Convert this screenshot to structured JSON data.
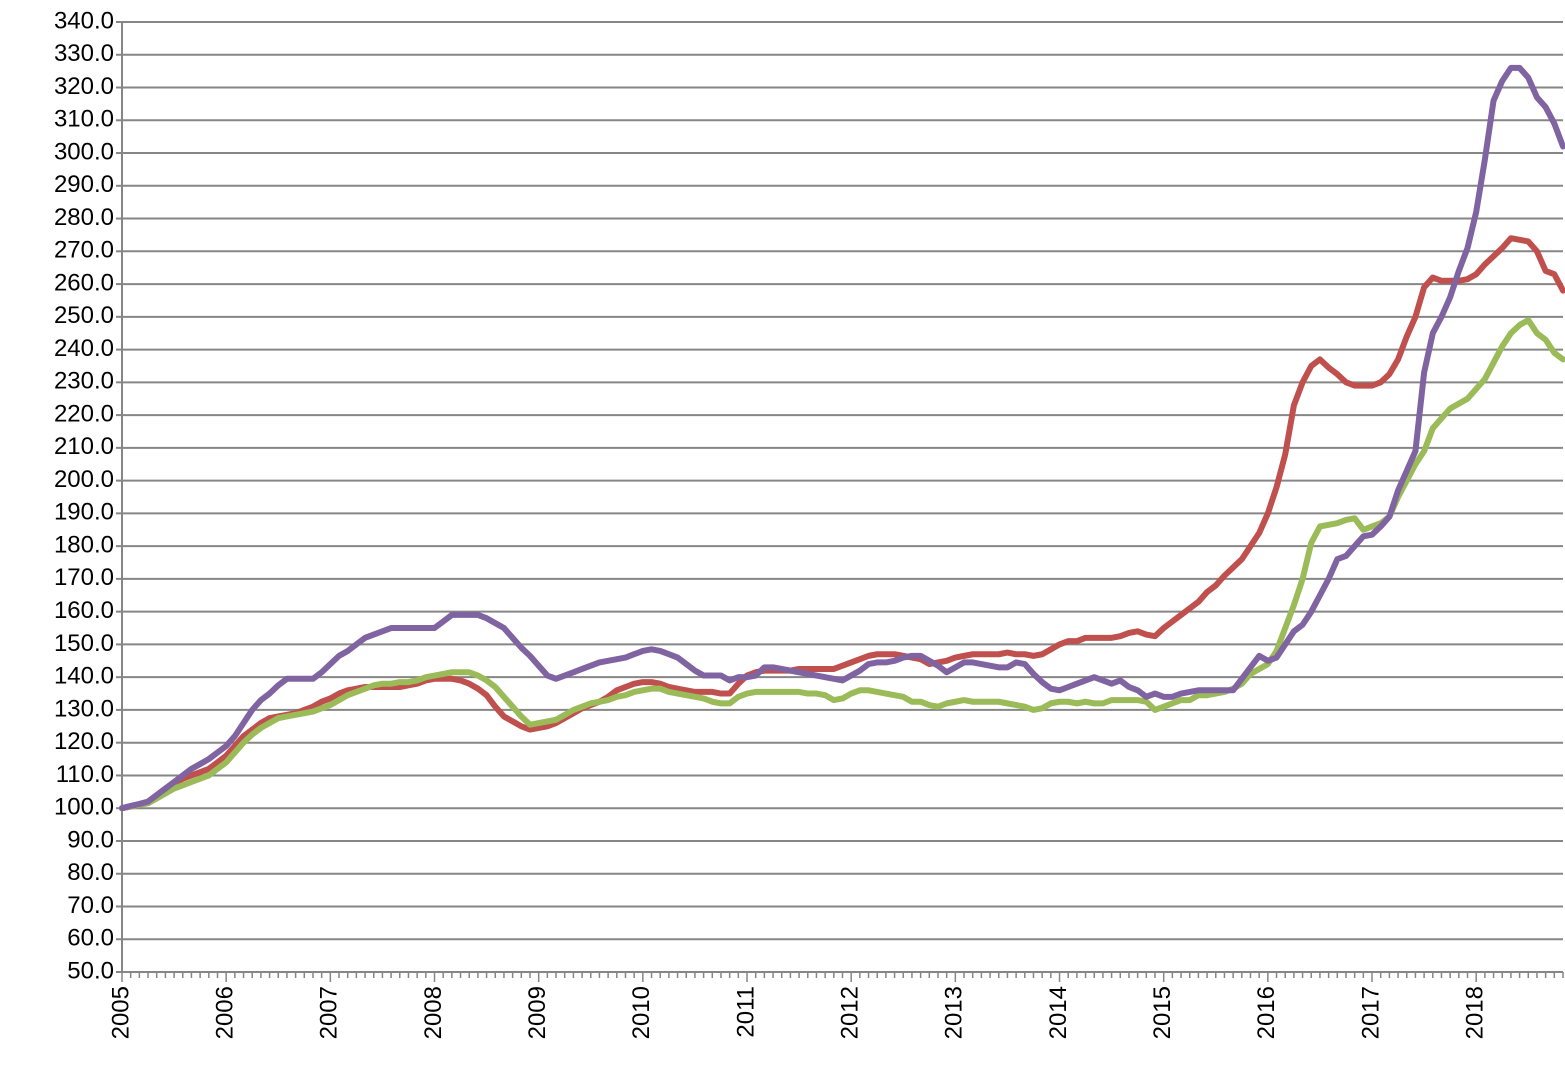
{
  "chart_data": {
    "type": "line",
    "categories": [
      "2005",
      null,
      null,
      null,
      null,
      null,
      null,
      null,
      null,
      null,
      null,
      null,
      "2006",
      null,
      null,
      null,
      null,
      null,
      null,
      null,
      null,
      null,
      null,
      null,
      "2007",
      null,
      null,
      null,
      null,
      null,
      null,
      null,
      null,
      null,
      null,
      null,
      "2008",
      null,
      null,
      null,
      null,
      null,
      null,
      null,
      null,
      null,
      null,
      null,
      "2009",
      null,
      null,
      null,
      null,
      null,
      null,
      null,
      null,
      null,
      null,
      null,
      "2010",
      null,
      null,
      null,
      null,
      null,
      null,
      null,
      null,
      null,
      null,
      null,
      "2011",
      null,
      null,
      null,
      null,
      null,
      null,
      null,
      null,
      null,
      null,
      null,
      "2012",
      null,
      null,
      null,
      null,
      null,
      null,
      null,
      null,
      null,
      null,
      null,
      "2013",
      null,
      null,
      null,
      null,
      null,
      null,
      null,
      null,
      null,
      null,
      null,
      "2014",
      null,
      null,
      null,
      null,
      null,
      null,
      null,
      null,
      null,
      null,
      null,
      "2015",
      null,
      null,
      null,
      null,
      null,
      null,
      null,
      null,
      null,
      null,
      null,
      "2016",
      null,
      null,
      null,
      null,
      null,
      null,
      null,
      null,
      null,
      null,
      null,
      "2017",
      null,
      null,
      null,
      null,
      null,
      null,
      null,
      null,
      null,
      null,
      null,
      "2018",
      null,
      null,
      null,
      null,
      null,
      null,
      null,
      null,
      null,
      null
    ],
    "series": [
      {
        "color": "#c0504d",
        "values": [
          100,
          100.5,
          101,
          102,
          104,
          106,
          107.5,
          109,
          110,
          111,
          112,
          114,
          116,
          119,
          122,
          124,
          126,
          127.5,
          128,
          128.5,
          129,
          130,
          131,
          132.5,
          133.5,
          135,
          136,
          136.5,
          137,
          137,
          137,
          137,
          137,
          137.5,
          138,
          139,
          139.5,
          139.5,
          139.5,
          139,
          138,
          136.5,
          134.5,
          131,
          128,
          126.5,
          125,
          124,
          124.5,
          125,
          126,
          127.5,
          129,
          130.5,
          131.5,
          132.5,
          134,
          136,
          137,
          138,
          138.5,
          138.5,
          138,
          137,
          136.5,
          136,
          135.5,
          135.5,
          135.5,
          135,
          135,
          138,
          140.5,
          141.5,
          142,
          142,
          142,
          142,
          142.5,
          142.5,
          142.5,
          142.5,
          142.5,
          143.5,
          144.5,
          145.5,
          146.5,
          147,
          147,
          147,
          146.5,
          146,
          145.5,
          144,
          144.5,
          145,
          146,
          146.5,
          147,
          147,
          147,
          147,
          147.5,
          147,
          147,
          146.5,
          147,
          148.5,
          150,
          151,
          151,
          152,
          152,
          152,
          152,
          152.5,
          153.5,
          154,
          153,
          152.5,
          155,
          157,
          159,
          161,
          163,
          166,
          168,
          171,
          173.5,
          176,
          180,
          184,
          190,
          198,
          208,
          223,
          230,
          235,
          237,
          234.5,
          232.5,
          230,
          229,
          229,
          229,
          230,
          232.5,
          237,
          244,
          250,
          259,
          262,
          261,
          261,
          261,
          261.5,
          263,
          266,
          268.5,
          271,
          274,
          273.5,
          273,
          270,
          264,
          263,
          258
        ]
      },
      {
        "color": "#9bbb59",
        "values": [
          100,
          100.5,
          101,
          101.5,
          103,
          104.5,
          106,
          107,
          108,
          109,
          110,
          112,
          114,
          117,
          120,
          122.5,
          124.5,
          126,
          127.5,
          128,
          128.5,
          129,
          129.5,
          130.5,
          131.5,
          133,
          134.5,
          135.5,
          136.5,
          137.5,
          138,
          138,
          138.5,
          138.5,
          139,
          140,
          140.5,
          141,
          141.5,
          141.5,
          141.5,
          140.5,
          139,
          137,
          134,
          131,
          128,
          125.5,
          126,
          126.5,
          127,
          128.5,
          130,
          131,
          132,
          132.5,
          133,
          134,
          134.5,
          135.5,
          136,
          136.5,
          136.5,
          135.5,
          135,
          134.5,
          134,
          133.5,
          132.5,
          132,
          132,
          134,
          135,
          135.5,
          135.5,
          135.5,
          135.5,
          135.5,
          135.5,
          135,
          135,
          134.5,
          133,
          133.5,
          135,
          136,
          136,
          135.5,
          135,
          134.5,
          134,
          132.5,
          132.5,
          131.5,
          131,
          132,
          132.5,
          133,
          132.5,
          132.5,
          132.5,
          132.5,
          132,
          131.5,
          131,
          130,
          130.5,
          132,
          132.5,
          132.5,
          132,
          132.5,
          132,
          132,
          133,
          133,
          133,
          133,
          132.5,
          130,
          131,
          132,
          133,
          133,
          134.5,
          134.5,
          135,
          135.5,
          136.5,
          138,
          141,
          142.5,
          144,
          148,
          155,
          162,
          170,
          181,
          186,
          186.5,
          187,
          188,
          188.5,
          185,
          186,
          187,
          189,
          195,
          200,
          205,
          209,
          216,
          219,
          222,
          223.5,
          225,
          228,
          231,
          236,
          241,
          245,
          247.5,
          249,
          245,
          243,
          239,
          237
        ]
      },
      {
        "color": "#8064a2",
        "values": [
          100,
          100.7,
          101.3,
          102,
          104,
          106,
          108,
          110,
          112,
          113.5,
          115,
          117,
          119,
          122,
          126,
          130,
          133,
          135,
          137.5,
          139.5,
          139.5,
          139.5,
          139.5,
          141.5,
          144,
          146.5,
          148,
          150,
          152,
          153,
          154,
          155,
          155,
          155,
          155,
          155,
          155,
          157,
          159,
          159,
          159,
          159,
          158,
          156.5,
          155,
          152,
          149,
          146.5,
          143.5,
          140.5,
          139.5,
          140.5,
          141.5,
          142.5,
          143.5,
          144.5,
          145,
          145.5,
          146,
          147,
          148,
          148.5,
          148,
          147,
          146,
          144,
          142,
          140.5,
          140.5,
          140.5,
          139,
          140,
          140,
          140.5,
          143,
          143,
          142.5,
          142,
          141.5,
          141,
          140.5,
          140,
          139.5,
          139,
          140.5,
          142,
          144,
          144.5,
          144.5,
          145,
          146,
          146.5,
          146.5,
          145,
          143.5,
          141.5,
          143,
          144.5,
          144.5,
          144,
          143.5,
          143,
          143,
          144.5,
          144,
          141,
          138.5,
          136.5,
          136,
          137,
          138,
          139,
          140,
          139,
          138,
          139,
          137,
          136,
          134,
          135,
          134,
          134,
          135,
          135.5,
          136,
          136,
          136,
          136,
          136,
          139.5,
          143,
          146.5,
          145,
          146,
          150,
          154,
          156,
          160,
          165,
          170,
          176,
          177,
          180,
          183,
          183.5,
          186,
          189,
          197,
          203,
          209,
          233,
          245,
          250,
          256,
          264,
          271,
          282,
          298,
          316,
          322,
          326,
          326,
          323,
          317,
          314,
          309,
          302
        ]
      }
    ],
    "ylim": [
      50,
      340
    ],
    "yticks": [
      {
        "value": 50,
        "label": "50.0"
      },
      {
        "value": 60,
        "label": "60.0"
      },
      {
        "value": 70,
        "label": "70.0"
      },
      {
        "value": 80,
        "label": "80.0"
      },
      {
        "value": 90,
        "label": "90.0"
      },
      {
        "value": 100,
        "label": "100.0"
      },
      {
        "value": 110,
        "label": "110.0"
      },
      {
        "value": 120,
        "label": "120.0"
      },
      {
        "value": 130,
        "label": "130.0"
      },
      {
        "value": 140,
        "label": "140.0"
      },
      {
        "value": 150,
        "label": "150.0"
      },
      {
        "value": 160,
        "label": "160.0"
      },
      {
        "value": 170,
        "label": "170.0"
      },
      {
        "value": 180,
        "label": "180.0"
      },
      {
        "value": 190,
        "label": "190.0"
      },
      {
        "value": 200,
        "label": "200.0"
      },
      {
        "value": 210,
        "label": "210.0"
      },
      {
        "value": 220,
        "label": "220.0"
      },
      {
        "value": 230,
        "label": "230.0"
      },
      {
        "value": 240,
        "label": "240.0"
      },
      {
        "value": 250,
        "label": "250.0"
      },
      {
        "value": 260,
        "label": "260.0"
      },
      {
        "value": 270,
        "label": "270.0"
      },
      {
        "value": 280,
        "label": "280.0"
      },
      {
        "value": 290,
        "label": "290.0"
      },
      {
        "value": 300,
        "label": "300.0"
      },
      {
        "value": 310,
        "label": "310.0"
      },
      {
        "value": 320,
        "label": "320.0"
      },
      {
        "value": 330,
        "label": "330.0"
      },
      {
        "value": 340,
        "label": "340.0"
      }
    ],
    "grid": true
  }
}
